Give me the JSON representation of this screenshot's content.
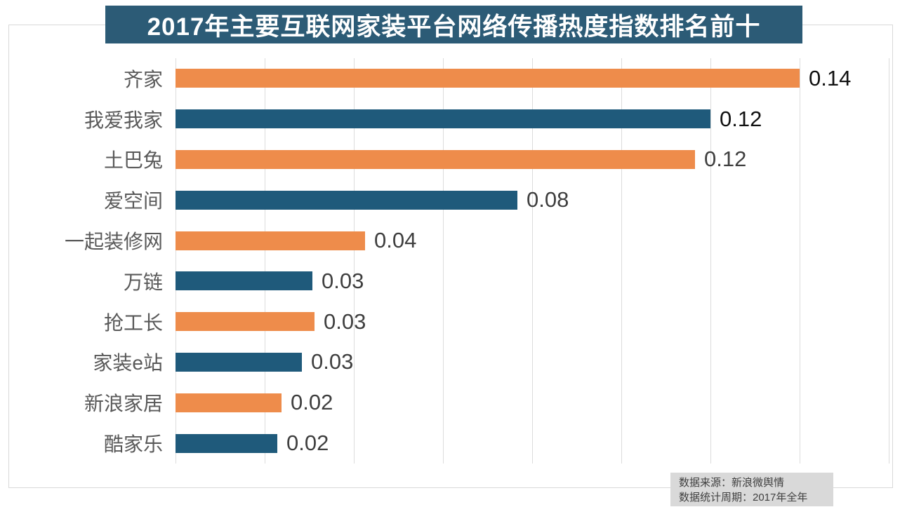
{
  "title": "2017年主要互联网家装平台网络传播热度指数排名前十",
  "source_note": {
    "line1": "数据来源：新浪微舆情",
    "line2": "数据统计周期：2017年全年"
  },
  "colors": {
    "title_bg": "#2c5b76",
    "bar_orange": "#ee8c4b",
    "bar_blue": "#1f5a7b",
    "gridline": "#dcdcdc",
    "frame_border": "#d9d9d9",
    "category_label": "#595959",
    "value_label_emphasis": "#111111",
    "value_label": "#3f3f3f",
    "source_bg": "#d9d9d9",
    "source_text": "#404040"
  },
  "chart_data": {
    "type": "bar",
    "orientation": "horizontal",
    "title": "2017年主要互联网家装平台网络传播热度指数排名前十",
    "categories": [
      "齐家",
      "我爱我家",
      "土巴兔",
      "爱空间",
      "一起装修网",
      "万链",
      "抢工长",
      "家装e站",
      "新浪家居",
      "酷家乐"
    ],
    "values": [
      0.14,
      0.12,
      0.12,
      0.08,
      0.04,
      0.03,
      0.03,
      0.03,
      0.02,
      0.02
    ],
    "value_labels": [
      "0.14",
      "0.12",
      "0.12",
      "0.08",
      "0.04",
      "0.03",
      "0.03",
      "0.03",
      "0.02",
      "0.02"
    ],
    "values_precise": [
      0.14,
      0.12,
      0.1165,
      0.0767,
      0.0425,
      0.0307,
      0.0312,
      0.0283,
      0.0238,
      0.0228
    ],
    "xlabel": "",
    "ylabel": "",
    "xlim": [
      0,
      0.16
    ],
    "grid_step": 0.02,
    "grid": true,
    "legend": false,
    "bar_color_pattern": [
      "#ee8c4b",
      "#1f5a7b"
    ],
    "emphasized_value_label_rows": [
      0,
      1
    ]
  }
}
